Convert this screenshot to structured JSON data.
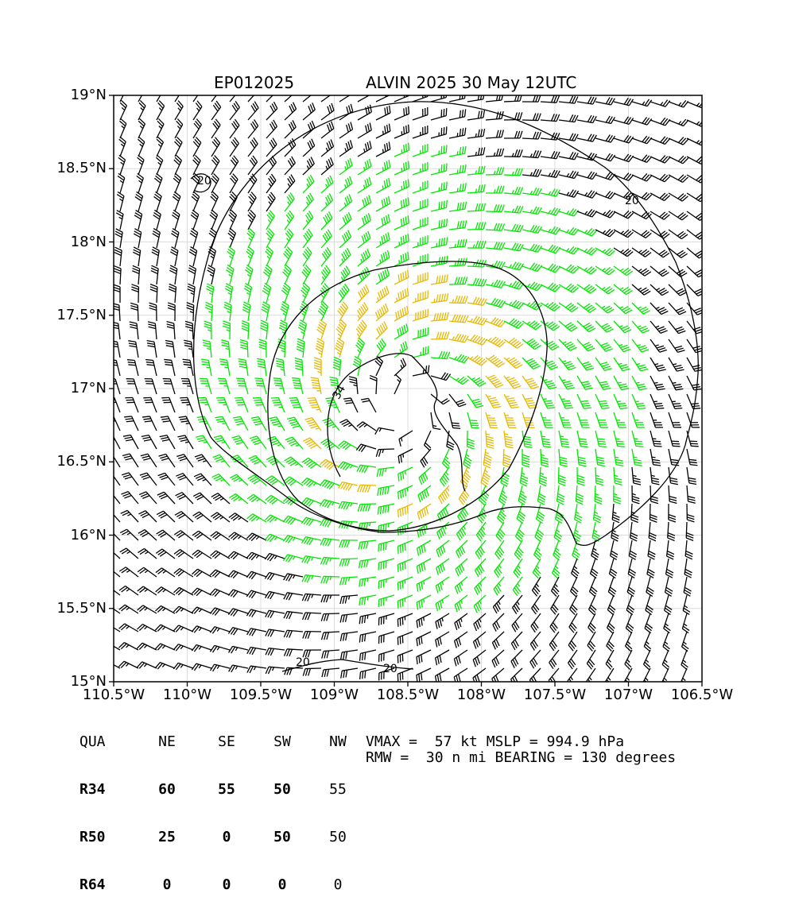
{
  "header": {
    "storm_id": "EP012025",
    "storm_title": "ALVIN 2025 30 May 12UTC"
  },
  "map": {
    "lat_labels": [
      "19°N",
      "18.5°N",
      "18°N",
      "17.5°N",
      "17°N",
      "16.5°N",
      "16°N",
      "15.5°N",
      "15°N"
    ],
    "lon_labels": [
      "110.5°W",
      "110°W",
      "109.5°W",
      "109°W",
      "108.5°W",
      "108°W",
      "107.5°W",
      "107°W",
      "106.5°W"
    ],
    "lat_range": [
      15,
      19
    ],
    "lon_range": [
      -110.5,
      -106.5
    ],
    "center": {
      "lat": 16.87,
      "lon": -108.5
    },
    "contour_labels": [
      "34",
      "20",
      "20",
      "20",
      "20"
    ],
    "wind_colors": {
      "below_34": "#000000",
      "gale_34_49": "#00e600",
      "storm_50_63": "#e6b800",
      "strong_64_plus": "#ff5a00"
    }
  },
  "table": {
    "header": [
      "QUA",
      "NE",
      "SE",
      "SW",
      "NW"
    ],
    "rows": [
      [
        "R34",
        "60",
        "55",
        "50",
        "55"
      ],
      [
        "R50",
        "25",
        "0",
        "50",
        "50"
      ],
      [
        "R64",
        "0",
        "0",
        "0",
        "0"
      ]
    ]
  },
  "stats": {
    "line1": "VMAX =  57 kt MSLP = 994.9 hPa",
    "line2": "RMW =  30 n mi BEARING = 130 degrees"
  }
}
